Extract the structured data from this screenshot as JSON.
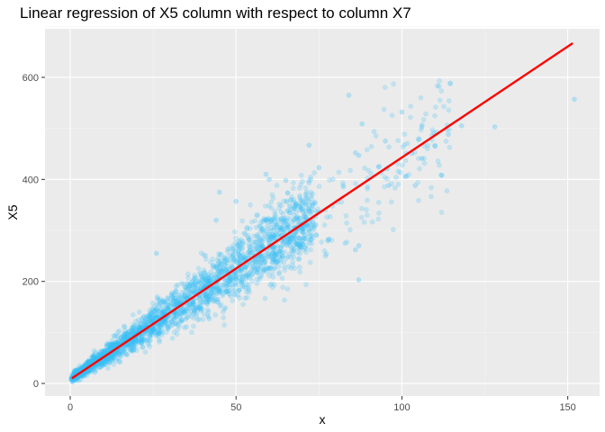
{
  "chart_data": {
    "type": "scatter",
    "title": "Linear regression of X5 column with respect to column X7",
    "xlabel": "x",
    "ylabel": "X5",
    "xlim": [
      -7.6,
      159.6
    ],
    "ylim": [
      -24.6,
      695.2
    ],
    "x_ticks": [
      0,
      50,
      100,
      150
    ],
    "x_tick_labels": [
      "0",
      "50",
      "100",
      "150"
    ],
    "y_ticks": [
      0,
      200,
      400,
      600
    ],
    "y_tick_labels": [
      "0",
      "200",
      "400",
      "600"
    ],
    "grid": true,
    "legend": "none",
    "regression_line": {
      "x": [
        0.5,
        151.5
      ],
      "y": [
        10,
        667
      ]
    },
    "trend": {
      "slope": 4.35,
      "intercept": 8,
      "noise_sd_ratio": 0.12,
      "n_points": 2600
    },
    "outliers": [
      {
        "x": 84,
        "y": 565
      },
      {
        "x": 152,
        "y": 557
      },
      {
        "x": 128,
        "y": 503
      },
      {
        "x": 100,
        "y": 532
      },
      {
        "x": 106,
        "y": 503
      },
      {
        "x": 88,
        "y": 509
      },
      {
        "x": 86,
        "y": 452
      },
      {
        "x": 87,
        "y": 447
      },
      {
        "x": 105,
        "y": 478
      },
      {
        "x": 114,
        "y": 488
      },
      {
        "x": 110,
        "y": 465
      },
      {
        "x": 103,
        "y": 451
      },
      {
        "x": 106,
        "y": 441
      },
      {
        "x": 112,
        "y": 408
      },
      {
        "x": 104,
        "y": 388
      },
      {
        "x": 101,
        "y": 406
      },
      {
        "x": 96,
        "y": 388
      },
      {
        "x": 87,
        "y": 270
      },
      {
        "x": 86,
        "y": 262
      },
      {
        "x": 87,
        "y": 203
      },
      {
        "x": 78,
        "y": 283
      },
      {
        "x": 74,
        "y": 311
      },
      {
        "x": 75,
        "y": 423
      },
      {
        "x": 72,
        "y": 467
      },
      {
        "x": 65,
        "y": 398
      },
      {
        "x": 60,
        "y": 400
      },
      {
        "x": 59,
        "y": 410
      },
      {
        "x": 44,
        "y": 320
      },
      {
        "x": 45,
        "y": 375
      },
      {
        "x": 50,
        "y": 357
      },
      {
        "x": 26,
        "y": 255
      },
      {
        "x": 38,
        "y": 148
      },
      {
        "x": 40,
        "y": 160
      },
      {
        "x": 42,
        "y": 165
      },
      {
        "x": 45,
        "y": 180
      },
      {
        "x": 48,
        "y": 175
      },
      {
        "x": 55,
        "y": 215
      },
      {
        "x": 60,
        "y": 225
      },
      {
        "x": 62,
        "y": 238
      },
      {
        "x": 95,
        "y": 475
      },
      {
        "x": 118,
        "y": 505
      },
      {
        "x": 93,
        "y": 425
      }
    ],
    "colors": {
      "panel_background": "#ebebeb",
      "grid_major": "#ffffff",
      "grid_minor": "#f5f5f5",
      "point_fill": "#38bdf8",
      "regression_line": "#ff0000",
      "tick_mark": "#333333"
    }
  }
}
